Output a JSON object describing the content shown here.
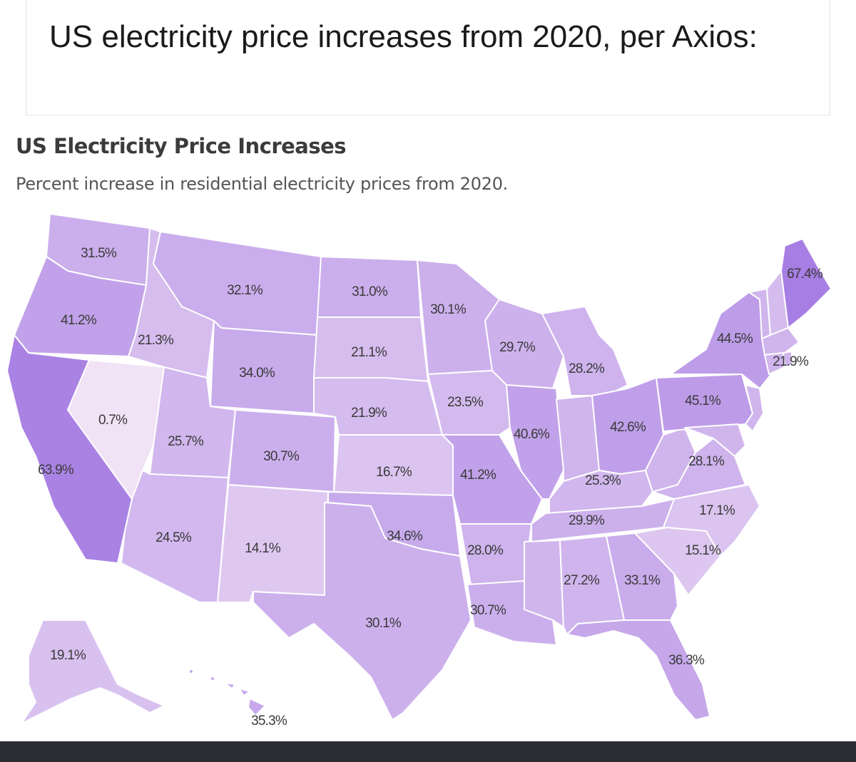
{
  "post": {
    "title": "US electricity price increases from 2020, per Axios:"
  },
  "map": {
    "title": "US Electricity Price Increases",
    "subtitle": "Percent increase in residential electricity prices from 2020.",
    "colors": {
      "low": "#f1e2f5",
      "high": "#a77ee3",
      "border": "#ffffff"
    },
    "states": [
      {
        "id": "WA",
        "value": 31.5,
        "label": "31.5%"
      },
      {
        "id": "OR",
        "value": 41.2,
        "label": "41.2%"
      },
      {
        "id": "CA",
        "value": 63.9,
        "label": "63.9%"
      },
      {
        "id": "NV",
        "value": 0.7,
        "label": "0.7%"
      },
      {
        "id": "ID",
        "value": 21.3,
        "label": "21.3%"
      },
      {
        "id": "MT",
        "value": 32.1,
        "label": "32.1%"
      },
      {
        "id": "WY",
        "value": 34.0,
        "label": "34.0%"
      },
      {
        "id": "UT",
        "value": 25.7,
        "label": "25.7%"
      },
      {
        "id": "CO",
        "value": 30.7,
        "label": "30.7%"
      },
      {
        "id": "AZ",
        "value": 24.5,
        "label": "24.5%"
      },
      {
        "id": "NM",
        "value": 14.1,
        "label": "14.1%"
      },
      {
        "id": "ND",
        "value": 31.0,
        "label": "31.0%"
      },
      {
        "id": "SD",
        "value": 21.1,
        "label": "21.1%"
      },
      {
        "id": "NE",
        "value": 21.9,
        "label": "21.9%"
      },
      {
        "id": "KS",
        "value": 16.7,
        "label": "16.7%"
      },
      {
        "id": "OK",
        "value": 34.6,
        "label": "34.6%"
      },
      {
        "id": "TX",
        "value": 30.1,
        "label": "30.1%"
      },
      {
        "id": "MN",
        "value": 30.1,
        "label": "30.1%"
      },
      {
        "id": "IA",
        "value": 23.5,
        "label": "23.5%"
      },
      {
        "id": "MO",
        "value": 41.2,
        "label": "41.2%"
      },
      {
        "id": "AR",
        "value": 28.0,
        "label": "28.0%"
      },
      {
        "id": "LA",
        "value": 30.7,
        "label": "30.7%"
      },
      {
        "id": "WI",
        "value": 29.7,
        "label": "29.7%"
      },
      {
        "id": "IL",
        "value": 40.6,
        "label": "40.6%"
      },
      {
        "id": "MI",
        "value": 28.2,
        "label": "28.2%"
      },
      {
        "id": "OH",
        "value": 42.6,
        "label": "42.6%"
      },
      {
        "id": "KY",
        "value": 25.3,
        "label": "25.3%"
      },
      {
        "id": "TN",
        "value": 29.9,
        "label": "29.9%"
      },
      {
        "id": "AL",
        "value": 27.2,
        "label": "27.2%"
      },
      {
        "id": "GA",
        "value": 33.1,
        "label": "33.1%"
      },
      {
        "id": "FL",
        "value": 36.3,
        "label": "36.3%"
      },
      {
        "id": "SC",
        "value": 15.1,
        "label": "15.1%"
      },
      {
        "id": "NC",
        "value": 17.1,
        "label": "17.1%"
      },
      {
        "id": "VA",
        "value": 28.1,
        "label": "28.1%"
      },
      {
        "id": "PA",
        "value": 45.1,
        "label": "45.1%"
      },
      {
        "id": "NY",
        "value": 44.5,
        "label": "44.5%"
      },
      {
        "id": "NH",
        "value": 21.9,
        "label": "21.9%"
      },
      {
        "id": "ME",
        "value": 67.4,
        "label": "67.4%"
      },
      {
        "id": "AK",
        "value": 19.1,
        "label": "19.1%"
      },
      {
        "id": "HI",
        "value": 35.3,
        "label": "35.3%"
      }
    ]
  }
}
